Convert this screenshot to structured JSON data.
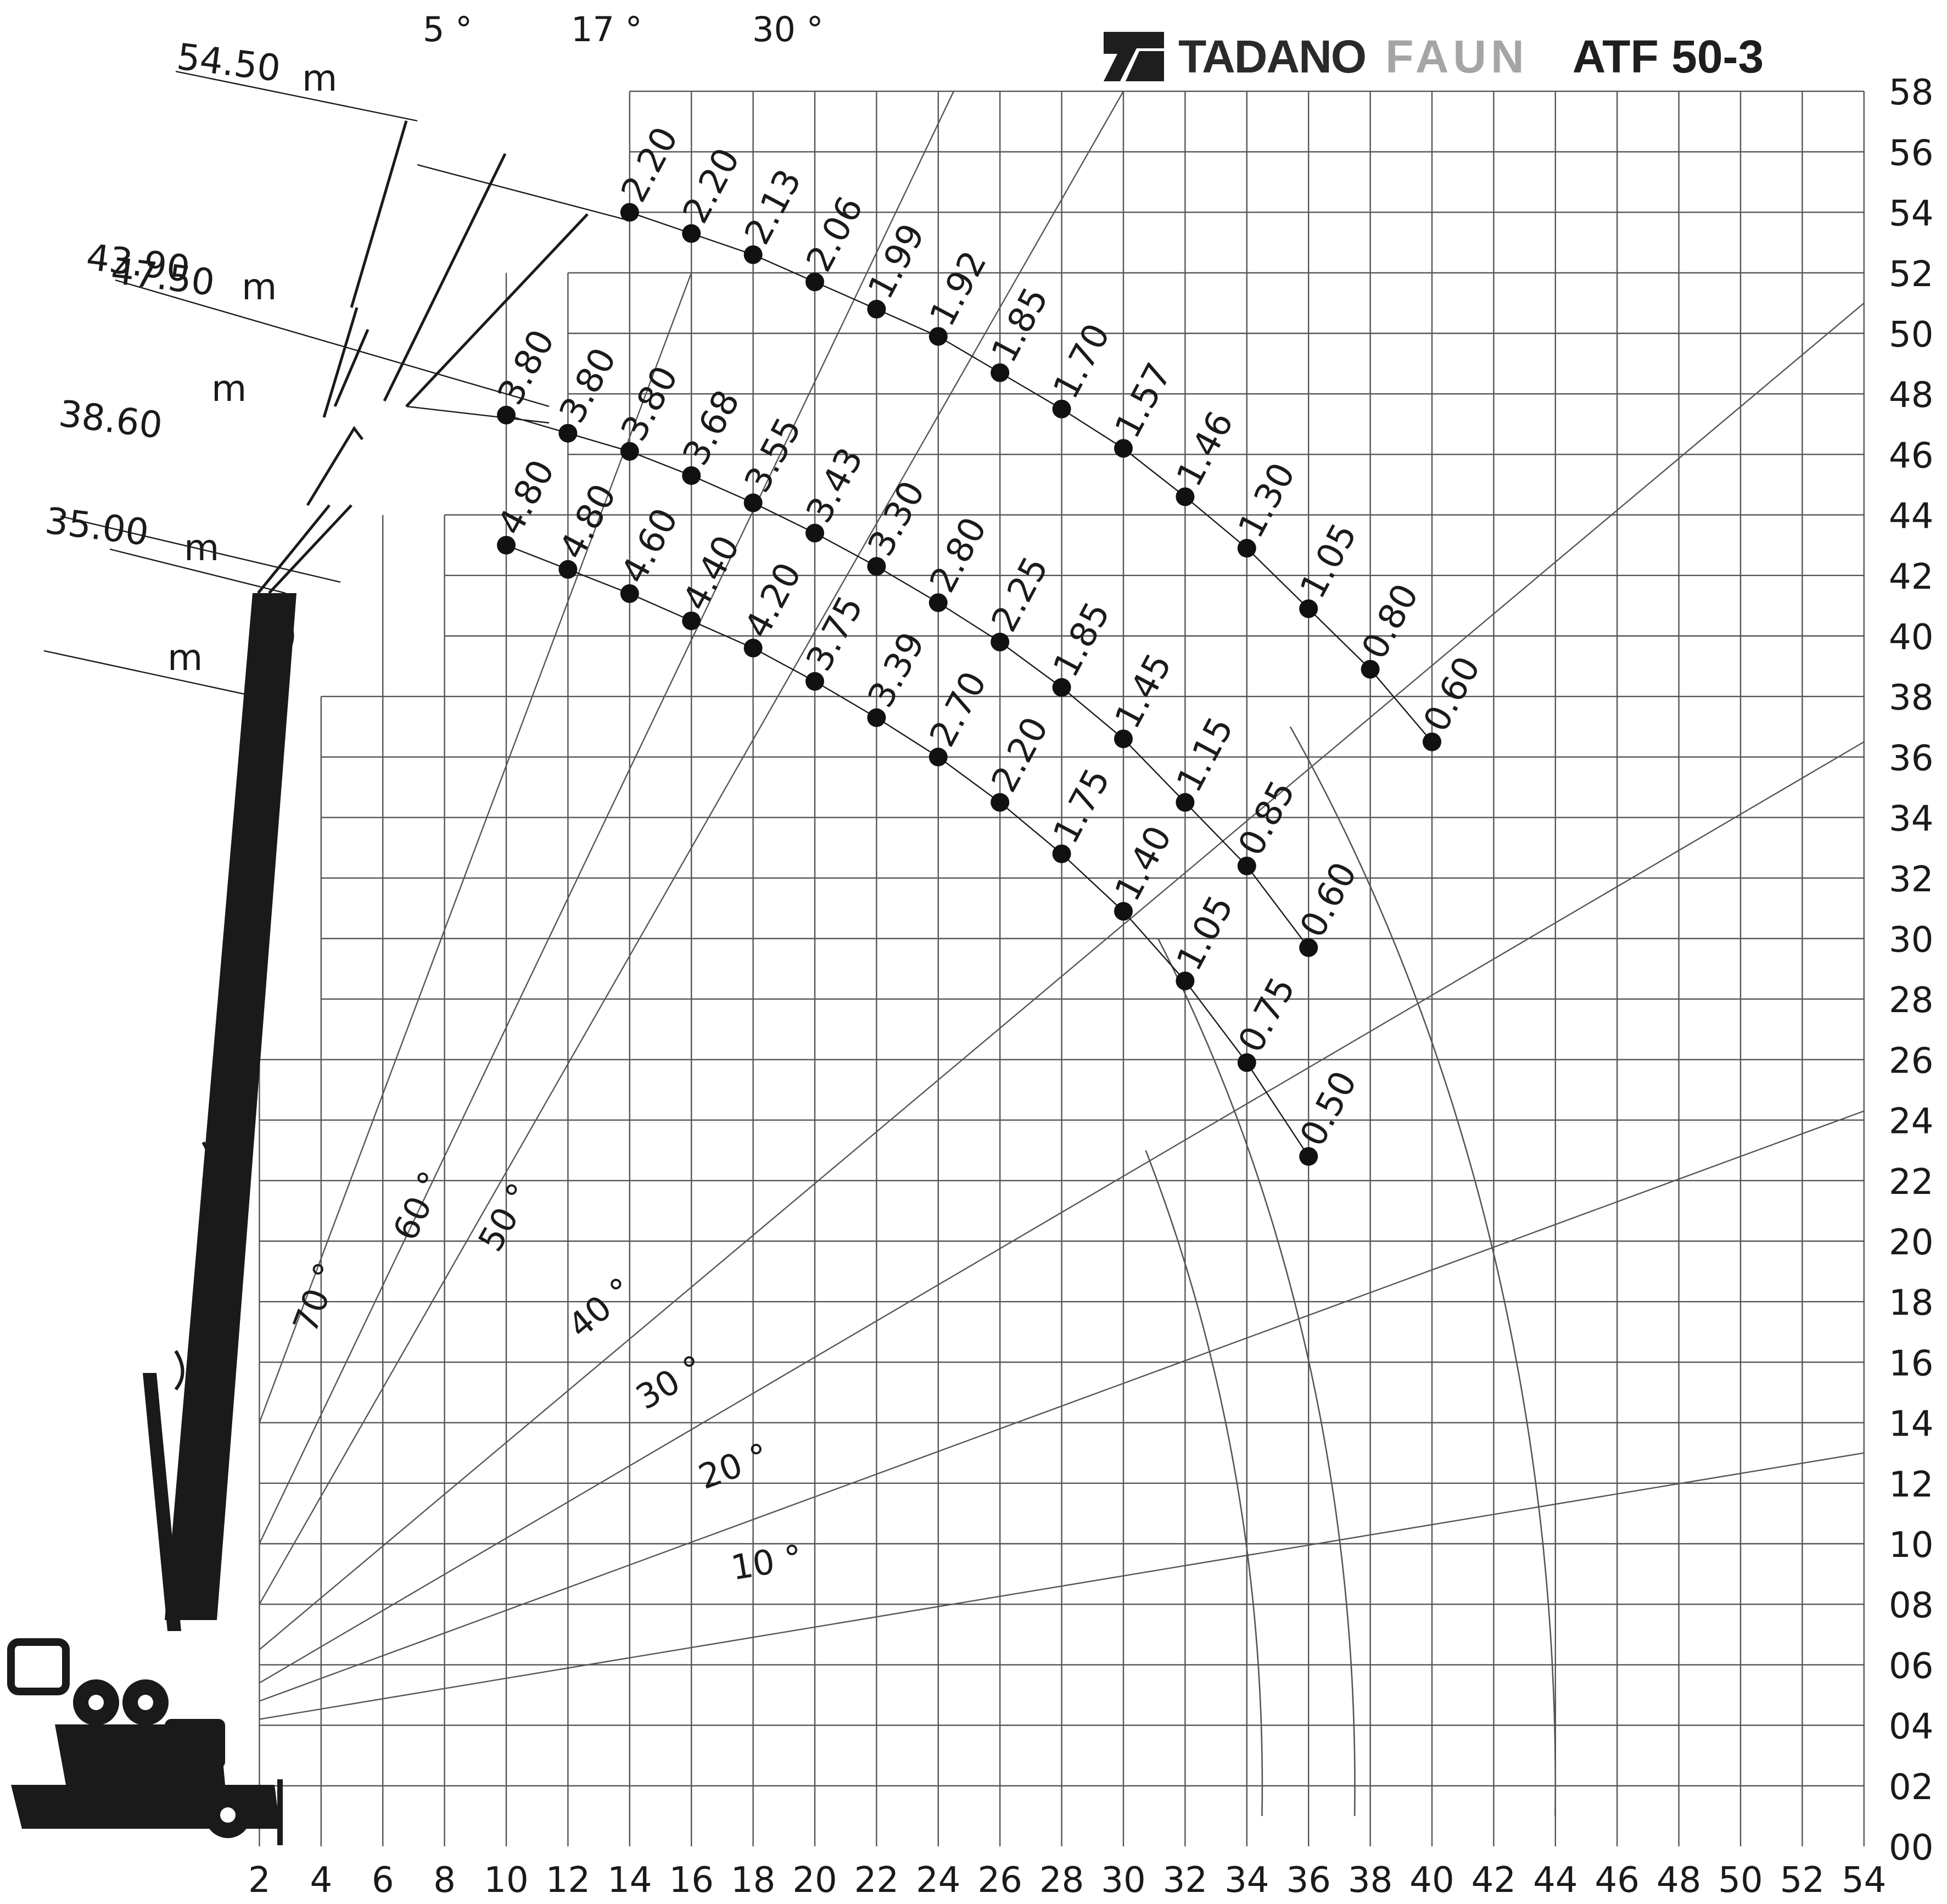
{
  "brand": {
    "maker": "TADANO",
    "sub": "FAUN",
    "model": "ATF 50-3"
  },
  "chart_data": {
    "type": "scatter",
    "title": "",
    "xlabel": "",
    "ylabel": "",
    "xlim": [
      0,
      54
    ],
    "ylim": [
      0,
      58
    ],
    "x_ticks": [
      2,
      4,
      6,
      8,
      10,
      12,
      14,
      16,
      18,
      20,
      22,
      24,
      26,
      28,
      30,
      32,
      34,
      36,
      38,
      40,
      42,
      44,
      46,
      48,
      50,
      52,
      54
    ],
    "y_tick_labels": [
      "00",
      "02",
      "04",
      "06",
      "08",
      "10",
      "12",
      "14",
      "16",
      "18",
      "20",
      "22",
      "24",
      "26",
      "28",
      "30",
      "32",
      "34",
      "36",
      "38",
      "40",
      "42",
      "44",
      "46",
      "48",
      "50",
      "52",
      "54",
      "56",
      "58"
    ],
    "series": [
      {
        "name": "54.50 m",
        "points": [
          {
            "x": 14,
            "y": 54.0,
            "load": "2.20"
          },
          {
            "x": 16,
            "y": 53.3,
            "load": "2.20"
          },
          {
            "x": 18,
            "y": 52.6,
            "load": "2.13"
          },
          {
            "x": 20,
            "y": 51.7,
            "load": "2.06"
          },
          {
            "x": 22,
            "y": 50.8,
            "load": "1.99"
          },
          {
            "x": 24,
            "y": 49.9,
            "load": "1.92"
          },
          {
            "x": 26,
            "y": 48.7,
            "load": "1.85"
          },
          {
            "x": 28,
            "y": 47.5,
            "load": "1.70"
          },
          {
            "x": 30,
            "y": 46.2,
            "load": "1.57"
          },
          {
            "x": 32,
            "y": 44.6,
            "load": "1.46"
          },
          {
            "x": 34,
            "y": 42.9,
            "load": "1.30"
          },
          {
            "x": 36,
            "y": 40.9,
            "load": "1.05"
          },
          {
            "x": 38,
            "y": 38.9,
            "load": "0.80"
          },
          {
            "x": 40,
            "y": 36.5,
            "load": "0.60"
          }
        ]
      },
      {
        "name": "47.50 m",
        "points": [
          {
            "x": 10,
            "y": 47.3,
            "load": "3.80"
          },
          {
            "x": 12,
            "y": 46.7,
            "load": "3.80"
          },
          {
            "x": 14,
            "y": 46.1,
            "load": "3.80"
          },
          {
            "x": 16,
            "y": 45.3,
            "load": "3.68"
          },
          {
            "x": 18,
            "y": 44.4,
            "load": "3.55"
          },
          {
            "x": 20,
            "y": 43.4,
            "load": "3.43"
          },
          {
            "x": 22,
            "y": 42.3,
            "load": "3.30"
          },
          {
            "x": 24,
            "y": 41.1,
            "load": "2.80"
          },
          {
            "x": 26,
            "y": 39.8,
            "load": "2.25"
          },
          {
            "x": 28,
            "y": 38.3,
            "load": "1.85"
          },
          {
            "x": 30,
            "y": 36.6,
            "load": "1.45"
          },
          {
            "x": 32,
            "y": 34.5,
            "load": "1.15"
          },
          {
            "x": 34,
            "y": 32.4,
            "load": "0.85"
          },
          {
            "x": 36,
            "y": 29.7,
            "load": "0.60"
          }
        ]
      },
      {
        "name": "43.90 m",
        "points": []
      },
      {
        "name": "38.60 m",
        "points": [
          {
            "x": 10,
            "y": 43.0,
            "load": "4.80"
          },
          {
            "x": 12,
            "y": 42.2,
            "load": "4.80"
          },
          {
            "x": 14,
            "y": 41.4,
            "load": "4.60"
          },
          {
            "x": 16,
            "y": 40.5,
            "load": "4.40"
          },
          {
            "x": 18,
            "y": 39.6,
            "load": "4.20"
          },
          {
            "x": 20,
            "y": 38.5,
            "load": "3.75"
          },
          {
            "x": 22,
            "y": 37.3,
            "load": "3.39"
          },
          {
            "x": 24,
            "y": 36.0,
            "load": "2.70"
          },
          {
            "x": 26,
            "y": 34.5,
            "load": "2.20"
          },
          {
            "x": 28,
            "y": 32.8,
            "load": "1.75"
          },
          {
            "x": 30,
            "y": 30.9,
            "load": "1.40"
          },
          {
            "x": 32,
            "y": 28.6,
            "load": "1.05"
          },
          {
            "x": 34,
            "y": 25.9,
            "load": "0.75"
          },
          {
            "x": 36,
            "y": 22.8,
            "load": "0.50"
          }
        ]
      },
      {
        "name": "35.00 m",
        "points": []
      }
    ],
    "boom_angles": [
      "70 °",
      "60 °",
      "50 °",
      "40 °",
      "30 °",
      "20 °",
      "10 °"
    ],
    "jib_offsets": [
      "5 °",
      "17 °",
      "30 °"
    ],
    "length_labels": [
      "54.50",
      "43.90",
      "47.50",
      "38.60",
      "35.00"
    ],
    "unit": "m",
    "grid": true
  },
  "colors": {
    "grid": "#555555",
    "ink": "#1a1a1a",
    "faun_grey": "#a5a5a5"
  }
}
